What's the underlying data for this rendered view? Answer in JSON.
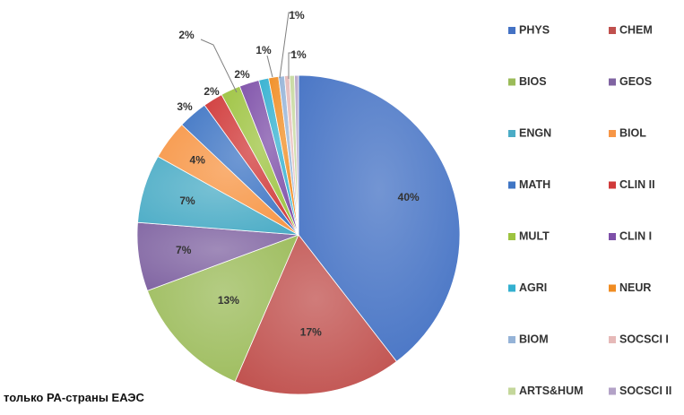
{
  "chart_data": {
    "type": "pie",
    "title": "",
    "note": "только РА-страны ЕАЭС",
    "legend_position": "right",
    "slices": [
      {
        "name": "PHYS",
        "value": 40,
        "label": "40%",
        "color": "#4472C4"
      },
      {
        "name": "CHEM",
        "value": 17,
        "label": "17%",
        "color": "#C0504D"
      },
      {
        "name": "BIOS",
        "value": 13,
        "label": "13%",
        "color": "#9BBB59"
      },
      {
        "name": "GEOS",
        "value": 7,
        "label": "7%",
        "color": "#8064A2"
      },
      {
        "name": "ENGN",
        "value": 7,
        "label": "7%",
        "color": "#4BACC6"
      },
      {
        "name": "BIOL",
        "value": 4,
        "label": "4%",
        "color": "#F79646"
      },
      {
        "name": "MATH",
        "value": 3,
        "label": "3%",
        "color": "#3F75C4"
      },
      {
        "name": "CLIN II",
        "value": 2,
        "label": "2%",
        "color": "#D03A3A"
      },
      {
        "name": "MULT",
        "value": 2,
        "label": "2%",
        "color": "#9DC340"
      },
      {
        "name": "CLIN I",
        "value": 2,
        "label": "2%",
        "color": "#7D4FA8"
      },
      {
        "name": "AGRI",
        "value": 1,
        "label": "1%",
        "color": "#33B0D0"
      },
      {
        "name": "NEUR",
        "value": 1,
        "label": "1%",
        "color": "#F08C22"
      },
      {
        "name": "BIOM",
        "value": 0.6,
        "label": "",
        "color": "#95B3D7"
      },
      {
        "name": "SOCSCI I",
        "value": 0.5,
        "label": "1%",
        "color": "#E6B9B8"
      },
      {
        "name": "ARTS&HUM",
        "value": 0.5,
        "label": "",
        "color": "#C4D79B"
      },
      {
        "name": "SOCSCI II",
        "value": 0.4,
        "label": "",
        "color": "#B3A2C7"
      }
    ]
  }
}
